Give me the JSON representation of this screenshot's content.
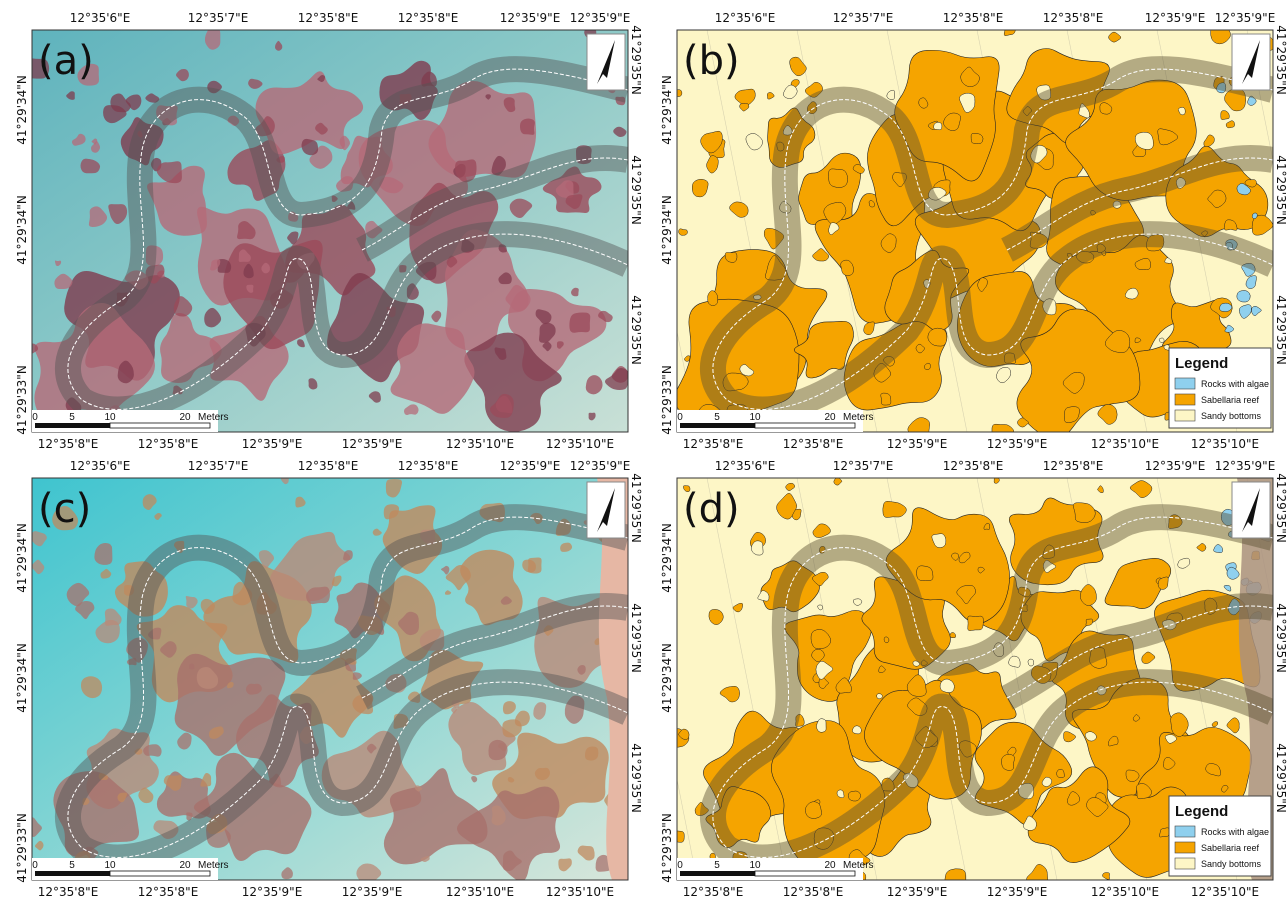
{
  "panels": [
    {
      "label": "(a)",
      "top_ticks": [
        "12°35'6\"E",
        "12°35'7\"E",
        "12°35'8\"E",
        "12°35'8\"E",
        "12°35'9\"E",
        "12°35'9\"E"
      ],
      "bottom_ticks": [
        "12°35'8\"E",
        "12°35'8\"E",
        "12°35'9\"E",
        "12°35'9\"E",
        "12°35'10\"E",
        "12°35'10\"E"
      ],
      "left_ticks": [
        "41°29'34\"N",
        "41°29'34\"N",
        "41°29'33\"N"
      ],
      "right_ticks": [
        "41°29'35\"N",
        "41°29'35\"N",
        "41°29'35\"N"
      ],
      "scale": [
        "0",
        "5",
        "10",
        "20",
        "Meters"
      ]
    },
    {
      "label": "(b)",
      "top_ticks": [
        "12°35'6\"E",
        "12°35'7\"E",
        "12°35'8\"E",
        "12°35'8\"E",
        "12°35'9\"E",
        "12°35'9\"E"
      ],
      "bottom_ticks": [
        "12°35'8\"E",
        "12°35'8\"E",
        "12°35'9\"E",
        "12°35'9\"E",
        "12°35'10\"E",
        "12°35'10\"E"
      ],
      "left_ticks": [
        "41°29'34\"N",
        "41°29'34\"N",
        "41°29'33\"N"
      ],
      "right_ticks": [
        "41°29'35\"N",
        "41°29'35\"N",
        "41°29'35\"N"
      ],
      "scale": [
        "0",
        "5",
        "10",
        "20",
        "Meters"
      ],
      "legend": {
        "title": "Legend",
        "items": [
          {
            "label": "Rocks with algae",
            "color": "#8fd0ee"
          },
          {
            "label": "Sabellaria reef",
            "color": "#f5a400"
          },
          {
            "label": "Sandy bottoms",
            "color": "#fdf6c6"
          }
        ]
      }
    },
    {
      "label": "(c)",
      "top_ticks": [
        "12°35'6\"E",
        "12°35'7\"E",
        "12°35'8\"E",
        "12°35'8\"E",
        "12°35'9\"E",
        "12°35'9\"E"
      ],
      "bottom_ticks": [
        "12°35'8\"E",
        "12°35'8\"E",
        "12°35'9\"E",
        "12°35'9\"E",
        "12°35'10\"E",
        "12°35'10\"E"
      ],
      "left_ticks": [
        "41°29'34\"N",
        "41°29'34\"N",
        "41°29'33\"N"
      ],
      "right_ticks": [
        "41°29'35\"N",
        "41°29'35\"N",
        "41°29'35\"N"
      ],
      "scale": [
        "0",
        "5",
        "10",
        "20",
        "Meters"
      ]
    },
    {
      "label": "(d)",
      "top_ticks": [
        "12°35'6\"E",
        "12°35'7\"E",
        "12°35'8\"E",
        "12°35'8\"E",
        "12°35'9\"E",
        "12°35'9\"E"
      ],
      "bottom_ticks": [
        "12°35'8\"E",
        "12°35'8\"E",
        "12°35'9\"E",
        "12°35'9\"E",
        "12°35'10\"E",
        "12°35'10\"E"
      ],
      "left_ticks": [
        "41°29'34\"N",
        "41°29'34\"N",
        "41°29'33\"N"
      ],
      "right_ticks": [
        "41°29'35\"N",
        "41°29'35\"N",
        "41°29'35\"N"
      ],
      "scale": [
        "0",
        "5",
        "10",
        "20",
        "Meters"
      ],
      "legend": {
        "title": "Legend",
        "items": [
          {
            "label": "Rocks with algae",
            "color": "#8fd0ee"
          },
          {
            "label": "Sabellaria reef",
            "color": "#f5a400"
          },
          {
            "label": "Sandy bottoms",
            "color": "#fdf6c6"
          }
        ]
      }
    }
  ]
}
